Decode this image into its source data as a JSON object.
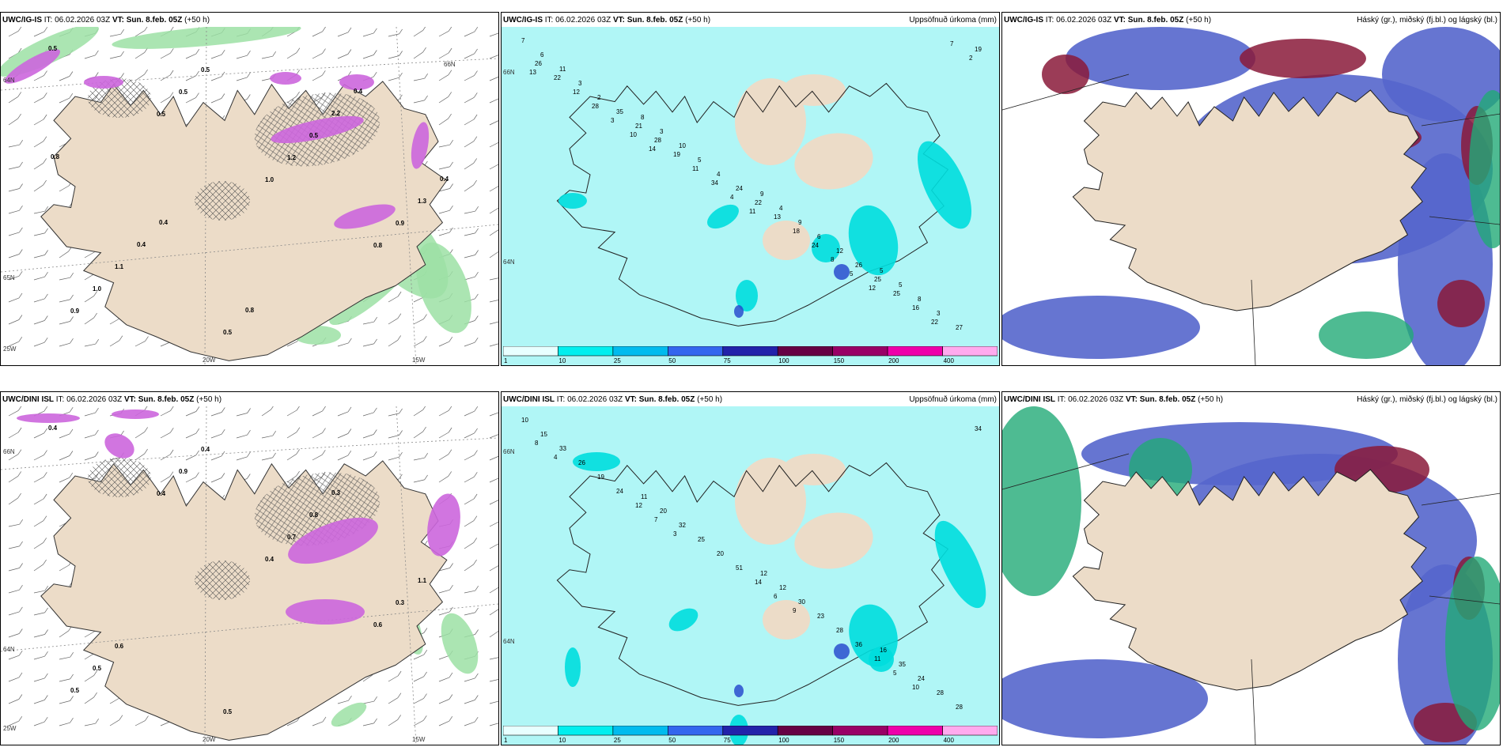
{
  "panels": [
    {
      "id": "tl",
      "header_prefix": "UWC/IG-IS",
      "header_it": " IT: 06.02.2026 03Z ",
      "header_vt": "VT: Sun. 8.feb. 05Z",
      "header_lead": " (+50 h)",
      "header_right": "",
      "axis_labels": [
        "20W",
        "15W",
        "25W",
        "65N",
        "64N",
        "66N"
      ],
      "values": [
        "0.5",
        "0.5",
        "1.0",
        "0.8",
        "0.9",
        "0.5",
        "1.2",
        "0.9",
        "1.0",
        "0.5",
        "0.5",
        "1.3",
        "1.1",
        "0.5",
        "2.2",
        "0.4",
        "0.4",
        "0.8",
        "0.4",
        "0.8",
        "0.4"
      ]
    },
    {
      "id": "tm",
      "header_prefix": "UWC/IG-IS",
      "header_it": " IT: 06.02.2026 03Z ",
      "header_vt": "VT: Sun. 8.feb. 05Z",
      "header_lead": " (+50 h)",
      "header_right": "Uppsöfnuð úrkoma (mm)",
      "axis_labels": [
        "66N",
        "64N"
      ],
      "values": [
        "7",
        "8",
        "9",
        "5",
        "6",
        "3",
        "4",
        "5",
        "11",
        "10",
        "9",
        "8",
        "3",
        "5",
        "6",
        "3",
        "2",
        "4",
        "12",
        "27",
        "35",
        "24",
        "26",
        "19",
        "21",
        "22",
        "25",
        "26",
        "28",
        "13",
        "25",
        "22",
        "19",
        "18",
        "16",
        "12",
        "11",
        "24",
        "22",
        "28",
        "34",
        "8",
        "7",
        "3",
        "4",
        "5",
        "2",
        "10",
        "11",
        "12",
        "13",
        "14"
      ]
    },
    {
      "id": "tr",
      "header_prefix": "UWC/IG-IS",
      "header_it": " IT: 06.02.2026 03Z ",
      "header_vt": "VT: Sun. 8.feb. 05Z",
      "header_lead": " (+50 h)",
      "header_right": "Háský (gr.), miðský (fj.bl.) og lágský (bl.)",
      "axis_labels": [],
      "values": []
    },
    {
      "id": "bl",
      "header_prefix": "UWC/DINI ISL",
      "header_it": " IT: 06.02.2026 03Z ",
      "header_vt": "VT: Sun. 8.feb. 05Z",
      "header_lead": " (+50 h)",
      "header_right": "",
      "axis_labels": [
        "20W",
        "15W",
        "25W",
        "66N",
        "64N"
      ],
      "values": [
        "0.4",
        "0.4",
        "0.4",
        "0.6",
        "0.5",
        "0.9",
        "0.7",
        "0.3",
        "0.5",
        "0.4",
        "0.8",
        "1.1",
        "0.6",
        "0.5",
        "0.3"
      ]
    },
    {
      "id": "bm",
      "header_prefix": "UWC/DINI ISL",
      "header_it": " IT: 06.02.2026 03Z ",
      "header_vt": "VT: Sun. 8.feb. 05Z",
      "header_lead": " (+50 h)",
      "header_right": "Uppsöfnuð úrkoma (mm)",
      "axis_labels": [
        "66N",
        "64N"
      ],
      "values": [
        "10",
        "11",
        "12",
        "16",
        "15",
        "20",
        "12",
        "35",
        "33",
        "32",
        "30",
        "24",
        "26",
        "25",
        "23",
        "28",
        "19",
        "20",
        "28",
        "28",
        "24",
        "51",
        "36",
        "34",
        "12",
        "14",
        "11",
        "8",
        "7",
        "6",
        "5",
        "4",
        "3",
        "9",
        "10"
      ]
    },
    {
      "id": "br",
      "header_prefix": "UWC/DINI ISL",
      "header_it": " IT: 06.02.2026 03Z ",
      "header_vt": "VT: Sun. 8.feb. 05Z",
      "header_lead": " (+50 h)",
      "header_right": "Háský (gr.), miðský (fj.bl.) og lágský (bl.)",
      "axis_labels": [],
      "values": []
    }
  ],
  "colorbar": {
    "labels": [
      "1",
      "10",
      "25",
      "50",
      "75",
      "100",
      "150",
      "200",
      "400"
    ],
    "colors": [
      "#e8ffff",
      "#00eeee",
      "#00bbee",
      "#3366ee",
      "#2222aa",
      "#660044",
      "#990066",
      "#ee00aa",
      "#ffaaee"
    ]
  },
  "colors": {
    "land": "#ecdcc8",
    "precip_bg": "#b0f6f6",
    "precip_cyan": "#00dede",
    "precip_blue": "#2244cc",
    "wind_green": "#9ce0a4",
    "snow_purple": "#cc66dd",
    "cloud_high": "#8a1a3a",
    "cloud_mid": "#5566cc",
    "cloud_low": "#22aa77"
  }
}
